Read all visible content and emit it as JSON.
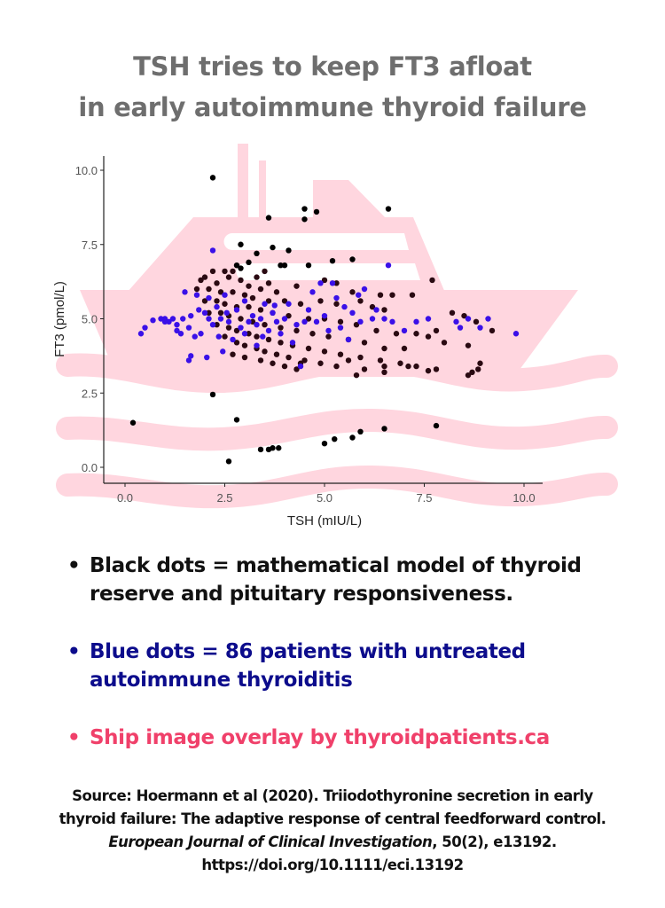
{
  "title": {
    "line1": "TSH tries to keep FT3 afloat",
    "line2": "in early autoimmune thyroid failure"
  },
  "colors": {
    "title": "#6e6e6e",
    "model_dots": "#2a0a12",
    "model_outlier_dots": "#000000",
    "patient_dots": "#3a10e8",
    "ship_overlay": "#ffd6df",
    "legend_black": "#111111",
    "legend_blue": "#0c0c8c",
    "legend_pink": "#f0406a"
  },
  "legend": {
    "items": [
      {
        "text": "Black dots = mathematical model of thyroid reserve and pituitary responsiveness.",
        "color": "#111111"
      },
      {
        "text": "Blue dots = 86 patients with untreated autoimmune thyroiditis",
        "color": "#0c0c8c"
      },
      {
        "text": "Ship image overlay by thyroidpatients.ca",
        "color": "#f0406a"
      }
    ]
  },
  "source": {
    "line1": "Source: Hoermann et al (2020). Triiodothyronine secretion in early",
    "line2": "thyroid failure: The adaptive response of central feedforward control.",
    "journal": "European Journal of Clinical Investigation",
    "line3_rest": ", 50(2), e13192.",
    "doi": "https://doi.org/10.1111/eci.13192"
  },
  "chart_data": {
    "type": "scatter",
    "title": "TSH tries to keep FT3 afloat in early autoimmune thyroid failure",
    "xlabel": "TSH (mIU/L)",
    "ylabel": "FT3 (pmol/L)",
    "xlim": [
      -0.5,
      10.5
    ],
    "ylim": [
      -0.5,
      10.5
    ],
    "xticks": [
      "0.0",
      "2.5",
      "5.0",
      "7.5",
      "10.0"
    ],
    "yticks": [
      "0.0",
      "2.5",
      "5.0",
      "7.5",
      "10.0"
    ],
    "grid": false,
    "legend_position": "none (described in bullet text below chart)",
    "series": [
      {
        "name": "Mathematical model (black dots)",
        "color": "#2a0a12",
        "points": [
          [
            2.2,
            9.75
          ],
          [
            3.6,
            8.4
          ],
          [
            4.5,
            8.7
          ],
          [
            4.5,
            8.35
          ],
          [
            4.8,
            8.6
          ],
          [
            6.6,
            8.7
          ],
          [
            2.9,
            7.5
          ],
          [
            3.7,
            7.4
          ],
          [
            3.3,
            7.2
          ],
          [
            4.1,
            7.3
          ],
          [
            2.8,
            6.8
          ],
          [
            3.1,
            6.9
          ],
          [
            3.9,
            6.8
          ],
          [
            4.0,
            6.8
          ],
          [
            4.6,
            6.8
          ],
          [
            3.5,
            6.6
          ],
          [
            2.9,
            6.7
          ],
          [
            5.7,
            7.0
          ],
          [
            5.2,
            6.95
          ],
          [
            7.7,
            6.3
          ],
          [
            3.3,
            6.4
          ],
          [
            3.6,
            6.2
          ],
          [
            4.3,
            6.1
          ],
          [
            5.0,
            6.3
          ],
          [
            5.3,
            6.2
          ],
          [
            5.7,
            5.9
          ],
          [
            6.4,
            5.8
          ],
          [
            6.7,
            5.8
          ],
          [
            7.2,
            5.8
          ],
          [
            2.0,
            6.4
          ],
          [
            2.2,
            6.6
          ],
          [
            2.5,
            6.6
          ],
          [
            2.7,
            6.6
          ],
          [
            1.9,
            6.3
          ],
          [
            2.3,
            6.2
          ],
          [
            2.6,
            6.4
          ],
          [
            2.9,
            6.3
          ],
          [
            3.1,
            6.1
          ],
          [
            3.4,
            6.0
          ],
          [
            3.8,
            5.9
          ],
          [
            1.8,
            6.0
          ],
          [
            2.1,
            6.0
          ],
          [
            2.4,
            5.9
          ],
          [
            2.7,
            5.9
          ],
          [
            3.0,
            5.8
          ],
          [
            3.2,
            5.7
          ],
          [
            3.6,
            5.6
          ],
          [
            4.0,
            5.6
          ],
          [
            4.4,
            5.5
          ],
          [
            4.9,
            5.6
          ],
          [
            5.3,
            5.5
          ],
          [
            5.9,
            5.6
          ],
          [
            6.2,
            5.4
          ],
          [
            6.5,
            5.3
          ],
          [
            2.0,
            5.6
          ],
          [
            2.3,
            5.6
          ],
          [
            2.5,
            5.5
          ],
          [
            2.8,
            5.4
          ],
          [
            3.1,
            5.4
          ],
          [
            3.4,
            5.3
          ],
          [
            3.7,
            5.2
          ],
          [
            4.1,
            5.1
          ],
          [
            4.6,
            5.0
          ],
          [
            5.0,
            5.0
          ],
          [
            5.4,
            4.9
          ],
          [
            5.8,
            4.8
          ],
          [
            6.3,
            4.6
          ],
          [
            6.8,
            4.5
          ],
          [
            7.3,
            4.5
          ],
          [
            7.8,
            4.6
          ],
          [
            8.2,
            5.2
          ],
          [
            8.5,
            5.1
          ],
          [
            8.6,
            4.1
          ],
          [
            8.8,
            4.9
          ],
          [
            9.2,
            4.6
          ],
          [
            2.1,
            5.2
          ],
          [
            2.4,
            5.2
          ],
          [
            2.6,
            5.1
          ],
          [
            2.9,
            5.0
          ],
          [
            3.2,
            4.9
          ],
          [
            3.5,
            4.8
          ],
          [
            3.9,
            4.7
          ],
          [
            4.3,
            4.6
          ],
          [
            4.7,
            4.5
          ],
          [
            5.1,
            4.4
          ],
          [
            5.6,
            4.3
          ],
          [
            6.0,
            4.2
          ],
          [
            6.5,
            4.0
          ],
          [
            7.0,
            4.0
          ],
          [
            7.6,
            4.4
          ],
          [
            8.0,
            4.2
          ],
          [
            2.3,
            4.8
          ],
          [
            2.6,
            4.7
          ],
          [
            2.8,
            4.6
          ],
          [
            3.1,
            4.5
          ],
          [
            3.3,
            4.4
          ],
          [
            3.6,
            4.3
          ],
          [
            3.9,
            4.2
          ],
          [
            4.2,
            4.1
          ],
          [
            4.6,
            4.0
          ],
          [
            5.0,
            3.9
          ],
          [
            5.4,
            3.8
          ],
          [
            5.9,
            3.7
          ],
          [
            6.4,
            3.6
          ],
          [
            6.9,
            3.5
          ],
          [
            7.3,
            3.4
          ],
          [
            7.8,
            3.3
          ],
          [
            8.7,
            3.2
          ],
          [
            8.9,
            3.5
          ],
          [
            8.85,
            3.3
          ],
          [
            2.5,
            4.4
          ],
          [
            2.8,
            4.2
          ],
          [
            3.0,
            4.1
          ],
          [
            3.3,
            4.0
          ],
          [
            3.5,
            3.9
          ],
          [
            3.8,
            3.8
          ],
          [
            4.1,
            3.7
          ],
          [
            4.5,
            3.6
          ],
          [
            4.9,
            3.5
          ],
          [
            5.3,
            3.4
          ],
          [
            5.6,
            3.6
          ],
          [
            6.0,
            3.3
          ],
          [
            6.5,
            3.2
          ],
          [
            7.1,
            3.4
          ],
          [
            2.7,
            3.8
          ],
          [
            3.0,
            3.7
          ],
          [
            3.4,
            3.6
          ],
          [
            3.7,
            3.5
          ],
          [
            4.0,
            3.4
          ],
          [
            4.3,
            3.3
          ],
          [
            4.4,
            3.5
          ],
          [
            5.8,
            3.1
          ],
          [
            6.5,
            3.4
          ],
          [
            7.6,
            3.25
          ],
          [
            8.6,
            3.1
          ],
          [
            0.2,
            1.5
          ],
          [
            2.2,
            2.45
          ],
          [
            2.6,
            0.2
          ],
          [
            2.8,
            1.6
          ],
          [
            3.4,
            0.6
          ],
          [
            3.6,
            0.6
          ],
          [
            3.7,
            0.65
          ],
          [
            3.85,
            0.65
          ],
          [
            5.0,
            0.8
          ],
          [
            5.25,
            0.95
          ],
          [
            5.7,
            1.0
          ],
          [
            5.9,
            1.2
          ],
          [
            6.5,
            1.3
          ],
          [
            7.8,
            1.4
          ]
        ]
      },
      {
        "name": "Patients with untreated autoimmune thyroiditis (blue dots, n=86)",
        "color": "#3a10e8",
        "points": [
          [
            2.2,
            7.3
          ],
          [
            0.4,
            4.5
          ],
          [
            0.5,
            4.7
          ],
          [
            0.7,
            4.95
          ],
          [
            0.9,
            5.0
          ],
          [
            1.0,
            5.0
          ],
          [
            1.1,
            4.9
          ],
          [
            1.2,
            5.0
          ],
          [
            1.3,
            4.6
          ],
          [
            1.4,
            4.5
          ],
          [
            1.45,
            5.0
          ],
          [
            1.6,
            4.7
          ],
          [
            1.65,
            5.1
          ],
          [
            1.8,
            5.8
          ],
          [
            1.5,
            5.9
          ],
          [
            1.6,
            3.6
          ],
          [
            1.65,
            3.75
          ],
          [
            2.05,
            3.7
          ],
          [
            1.0,
            4.9
          ],
          [
            1.3,
            4.8
          ],
          [
            1.75,
            4.4
          ],
          [
            1.9,
            4.5
          ],
          [
            2.0,
            5.2
          ],
          [
            2.1,
            5.0
          ],
          [
            2.2,
            4.8
          ],
          [
            2.4,
            5.0
          ],
          [
            2.5,
            5.8
          ],
          [
            2.6,
            4.9
          ],
          [
            2.8,
            5.3
          ],
          [
            2.9,
            4.7
          ],
          [
            3.0,
            4.5
          ],
          [
            3.1,
            4.9
          ],
          [
            3.2,
            5.1
          ],
          [
            3.3,
            4.8
          ],
          [
            3.4,
            5.0
          ],
          [
            3.5,
            5.5
          ],
          [
            3.6,
            4.6
          ],
          [
            3.7,
            5.2
          ],
          [
            3.8,
            4.9
          ],
          [
            4.0,
            5.0
          ],
          [
            4.1,
            5.5
          ],
          [
            4.3,
            4.8
          ],
          [
            4.4,
            3.4
          ],
          [
            4.6,
            5.3
          ],
          [
            4.8,
            4.9
          ],
          [
            5.0,
            5.1
          ],
          [
            5.2,
            6.2
          ],
          [
            5.4,
            4.7
          ],
          [
            5.5,
            5.4
          ],
          [
            5.6,
            4.3
          ],
          [
            5.7,
            5.2
          ],
          [
            5.9,
            4.9
          ],
          [
            6.0,
            6.0
          ],
          [
            6.2,
            5.0
          ],
          [
            6.3,
            5.3
          ],
          [
            6.6,
            6.8
          ],
          [
            6.7,
            4.9
          ],
          [
            6.5,
            5.0
          ],
          [
            5.85,
            5.8
          ],
          [
            7.0,
            4.6
          ],
          [
            7.3,
            4.9
          ],
          [
            7.6,
            5.0
          ],
          [
            8.3,
            4.9
          ],
          [
            8.4,
            4.7
          ],
          [
            8.6,
            5.0
          ],
          [
            8.9,
            4.7
          ],
          [
            9.1,
            5.0
          ],
          [
            9.8,
            4.5
          ],
          [
            2.1,
            5.7
          ],
          [
            2.35,
            4.4
          ],
          [
            2.7,
            4.3
          ],
          [
            3.0,
            5.6
          ],
          [
            3.3,
            4.1
          ],
          [
            2.45,
            3.9
          ],
          [
            3.9,
            4.5
          ],
          [
            4.2,
            4.2
          ],
          [
            4.7,
            5.9
          ],
          [
            5.1,
            4.6
          ],
          [
            5.3,
            5.7
          ],
          [
            4.9,
            6.2
          ],
          [
            2.3,
            5.4
          ],
          [
            1.85,
            5.3
          ],
          [
            2.55,
            5.2
          ],
          [
            3.45,
            4.4
          ],
          [
            4.5,
            4.9
          ],
          [
            3.75,
            5.45
          ]
        ]
      }
    ]
  }
}
